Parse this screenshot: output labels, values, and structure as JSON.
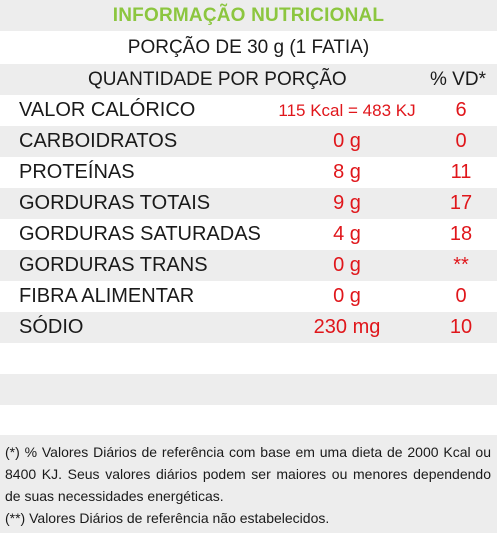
{
  "title": "INFORMAÇÃO NUTRICIONAL",
  "portion": "PORÇÃO DE 30 g (1 FATIA)",
  "header": {
    "quantity": "QUANTIDADE POR PORÇÃO",
    "vd": "% VD*"
  },
  "rows": [
    {
      "label": "VALOR CALÓRICO",
      "amount": "115 Kcal = 483 KJ",
      "vd": "6"
    },
    {
      "label": "CARBOIDRATOS",
      "amount": "0 g",
      "vd": "0"
    },
    {
      "label": "PROTEÍNAS",
      "amount": "8 g",
      "vd": "11"
    },
    {
      "label": "GORDURAS TOTAIS",
      "amount": "9 g",
      "vd": "17"
    },
    {
      "label": "GORDURAS SATURADAS",
      "amount": "4 g",
      "vd": "18"
    },
    {
      "label": "GORDURAS TRANS",
      "amount": "0 g",
      "vd": "**"
    },
    {
      "label": "FIBRA ALIMENTAR",
      "amount": "0 g",
      "vd": "0"
    },
    {
      "label": "SÓDIO",
      "amount": "230 mg",
      "vd": "10"
    }
  ],
  "footnote": {
    "line1": "(*) % Valores Diários de referência com base em uma dieta de 2000 Kcal ou 8400 KJ. Seus valores diários podem ser maiores ou menores dependendo de suas necessidades energéticas.",
    "line2": "(**) Valores Diários de referência não estabelecidos."
  },
  "colors": {
    "title": "#8cc63f",
    "values": "#e0161b",
    "band": "#ededed"
  }
}
